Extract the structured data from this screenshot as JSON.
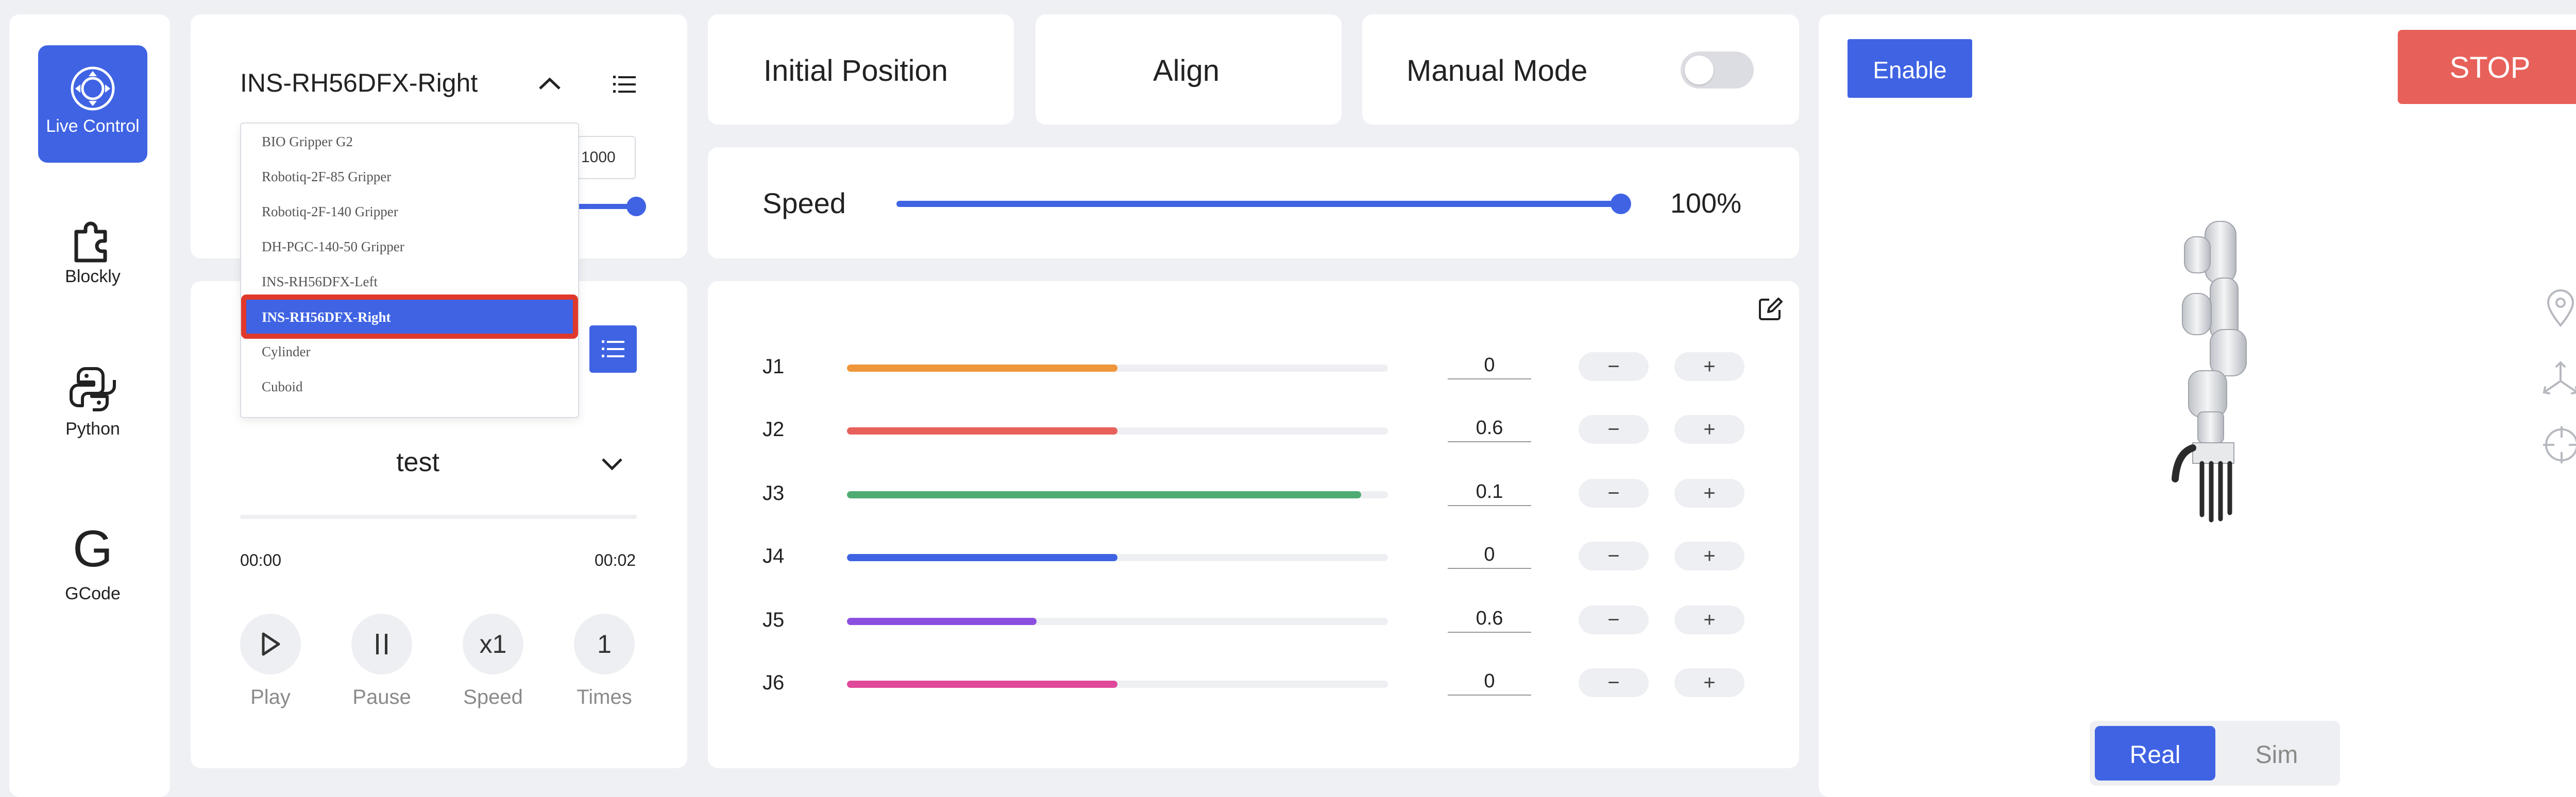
{
  "nav": {
    "items": [
      {
        "label": "Live Control",
        "icon": "target-icon",
        "active": true
      },
      {
        "label": "Blockly",
        "icon": "puzzle-icon",
        "active": false
      },
      {
        "label": "Python",
        "icon": "python-icon",
        "active": false
      },
      {
        "label": "GCode",
        "icon": "gcode-icon",
        "active": false
      }
    ]
  },
  "gripper": {
    "selected": "INS-RH56DFX-Right",
    "value_field": "1000",
    "options": [
      "BIO Gripper G2",
      "Robotiq-2F-85 Gripper",
      "Robotiq-2F-140 Gripper",
      "DH-PGC-140-50 Gripper",
      "INS-RH56DFX-Left",
      "INS-RH56DFX-Right",
      "Cylinder",
      "Cuboid"
    ]
  },
  "player": {
    "project": "test",
    "time_start": "00:00",
    "time_end": "00:02",
    "speed_value": "x1",
    "times_value": "1",
    "labels": {
      "play": "Play",
      "pause": "Pause",
      "speed": "Speed",
      "times": "Times"
    },
    "progress": 0
  },
  "controls": {
    "initial_position": "Initial Position",
    "align": "Align",
    "manual_mode": "Manual Mode",
    "manual_mode_on": false
  },
  "speed": {
    "label": "Speed",
    "value": 100,
    "value_text": "100%"
  },
  "joints": [
    {
      "label": "J1",
      "value": "0",
      "fill": 0.5,
      "color": "#f0963a"
    },
    {
      "label": "J2",
      "value": "0.6",
      "fill": 0.5,
      "color": "#e8605a"
    },
    {
      "label": "J3",
      "value": "0.1",
      "fill": 0.95,
      "color": "#4fab73"
    },
    {
      "label": "J4",
      "value": "0",
      "fill": 0.5,
      "color": "#3f63e3"
    },
    {
      "label": "J5",
      "value": "0.6",
      "fill": 0.35,
      "color": "#8b4fe0"
    },
    {
      "label": "J6",
      "value": "0",
      "fill": 0.5,
      "color": "#e0489a"
    }
  ],
  "joint_buttons": {
    "minus": "−",
    "plus": "+"
  },
  "viewer": {
    "enable": "Enable",
    "stop": "STOP",
    "mode_real": "Real",
    "mode_sim": "Sim",
    "active_mode": "Real"
  },
  "colors": {
    "accent": "#3f63e3",
    "stop": "#e8605a"
  }
}
